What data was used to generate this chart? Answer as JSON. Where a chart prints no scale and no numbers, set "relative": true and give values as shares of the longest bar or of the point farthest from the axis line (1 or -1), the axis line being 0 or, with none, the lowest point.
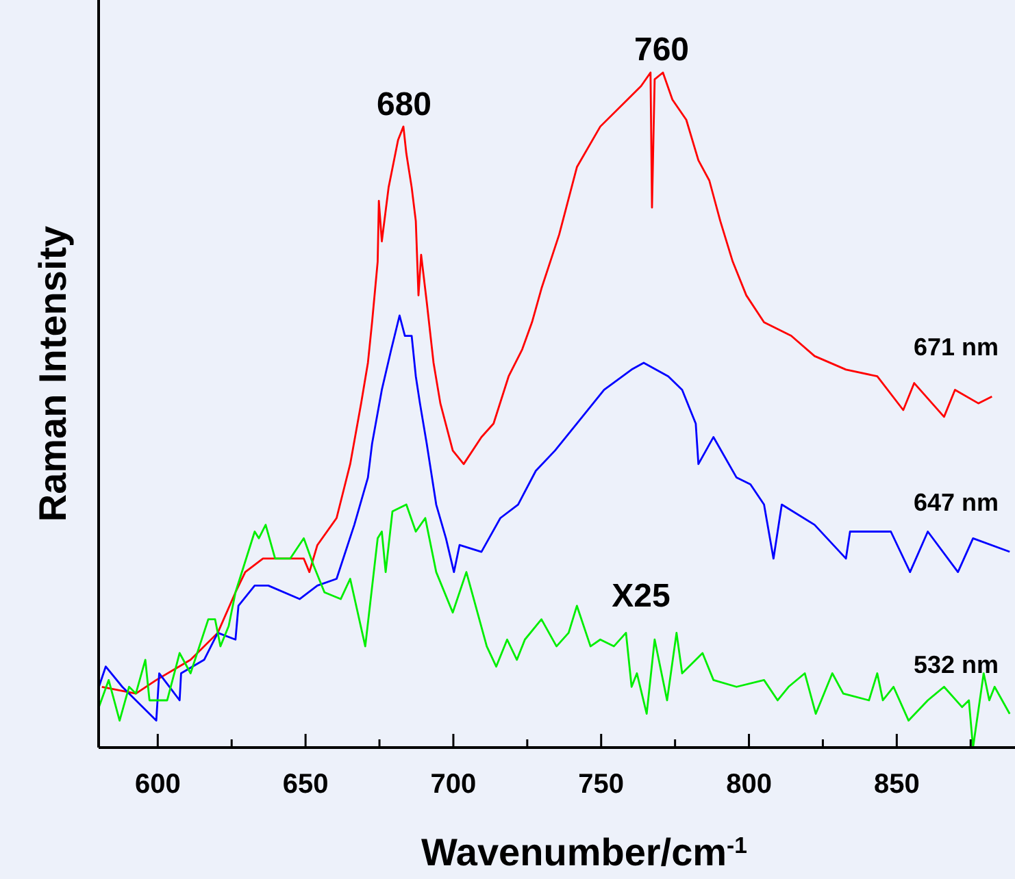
{
  "chart_data": {
    "type": "line",
    "relative": true,
    "xlabel": "Wavenumber/cm$^{-1}$",
    "ylabel": "Raman Intensity",
    "xlim": [
      580,
      890
    ],
    "xticks": [
      600,
      {
        "value": 625,
        "label": null
      },
      650,
      {
        "value": 675,
        "label": null
      },
      700,
      {
        "value": 725,
        "label": null
      },
      750,
      {
        "value": 775,
        "label": null
      },
      800,
      {
        "value": 825,
        "label": null
      },
      850,
      {
        "value": 875,
        "label": null
      }
    ],
    "annotations": [
      "680",
      "760",
      "X25"
    ],
    "series": [
      {
        "name": "671 nm",
        "color": "#ff0000",
        "x": [
          581.1,
          592.6,
          599.5,
          611.1,
          620.3,
          626.3,
          629.6,
          635.6,
          649.4,
          651.3,
          654.0,
          660.5,
          665.1,
          668.8,
          671.1,
          672.5,
          674.4,
          674.8,
          675.8,
          678.1,
          681.3,
          683.1,
          684.1,
          685.9,
          687.3,
          688.2,
          689.1,
          691.0,
          693.3,
          695.6,
          699.8,
          703.5,
          709.5,
          713.6,
          718.7,
          723.3,
          726.6,
          729.8,
          735.8,
          741.8,
          749.7,
          758.9,
          763.5,
          766.7,
          767.2,
          768.1,
          770.9,
          774.1,
          778.8,
          782.9,
          786.6,
          790.3,
          794.5,
          799.1,
          805.1,
          814.3,
          822.2,
          832.8,
          843.4,
          852.2,
          855.9,
          866.0,
          869.7,
          877.6,
          882.2
        ],
        "values": [
          0.09,
          0.08,
          0.1,
          0.13,
          0.17,
          0.23,
          0.26,
          0.28,
          0.28,
          0.26,
          0.3,
          0.34,
          0.42,
          0.51,
          0.57,
          0.63,
          0.72,
          0.81,
          0.75,
          0.83,
          0.9,
          0.92,
          0.88,
          0.83,
          0.78,
          0.67,
          0.73,
          0.66,
          0.57,
          0.51,
          0.44,
          0.42,
          0.46,
          0.48,
          0.55,
          0.59,
          0.63,
          0.68,
          0.76,
          0.86,
          0.92,
          0.96,
          0.98,
          1.0,
          0.8,
          0.99,
          1.0,
          0.96,
          0.93,
          0.87,
          0.84,
          0.78,
          0.72,
          0.67,
          0.63,
          0.61,
          0.58,
          0.56,
          0.55,
          0.5,
          0.54,
          0.49,
          0.53,
          0.51,
          0.52
        ]
      },
      {
        "name": "647 nm",
        "color": "#0000ff",
        "x": [
          580.1,
          582.4,
          588.0,
          599.5,
          600.5,
          607.4,
          607.9,
          615.7,
          620.3,
          626.3,
          627.3,
          632.8,
          637.4,
          648.0,
          654.0,
          660.5,
          666.5,
          671.1,
          672.5,
          675.8,
          679.0,
          681.8,
          683.6,
          685.9,
          687.3,
          688.7,
          691.0,
          694.2,
          697.5,
          700.2,
          702.1,
          709.5,
          715.9,
          721.9,
          727.9,
          734.4,
          741.8,
          751.0,
          760.3,
          764.4,
          772.7,
          777.4,
          782.0,
          782.9,
          788.0,
          795.8,
          800.5,
          805.1,
          808.3,
          811.1,
          822.2,
          832.8,
          834.2,
          848.0,
          854.5,
          860.5,
          870.7,
          875.8,
          888.2
        ],
        "values": [
          0.09,
          0.12,
          0.09,
          0.04,
          0.11,
          0.07,
          0.11,
          0.13,
          0.17,
          0.16,
          0.21,
          0.24,
          0.24,
          0.22,
          0.24,
          0.25,
          0.33,
          0.4,
          0.45,
          0.53,
          0.59,
          0.64,
          0.61,
          0.61,
          0.55,
          0.51,
          0.45,
          0.36,
          0.31,
          0.26,
          0.3,
          0.29,
          0.34,
          0.36,
          0.41,
          0.44,
          0.48,
          0.53,
          0.56,
          0.57,
          0.55,
          0.53,
          0.48,
          0.42,
          0.46,
          0.4,
          0.39,
          0.36,
          0.28,
          0.36,
          0.33,
          0.28,
          0.32,
          0.32,
          0.26,
          0.32,
          0.26,
          0.31,
          0.29
        ]
      },
      {
        "name": "532 nm",
        "color": "#00ee00",
        "x": [
          580.1,
          583.4,
          587.1,
          590.3,
          592.6,
          595.8,
          597.2,
          603.2,
          607.4,
          611.1,
          617.1,
          619.4,
          621.2,
          624.0,
          626.3,
          632.8,
          634.2,
          636.5,
          639.7,
          644.8,
          649.4,
          652.7,
          656.4,
          661.9,
          665.1,
          670.2,
          674.4,
          675.8,
          677.1,
          679.4,
          684.1,
          687.3,
          690.5,
          694.2,
          699.8,
          704.4,
          711.3,
          714.5,
          718.2,
          721.5,
          724.2,
          729.8,
          734.9,
          739.0,
          741.8,
          746.4,
          749.7,
          754.3,
          758.4,
          760.3,
          762.1,
          765.4,
          768.1,
          772.3,
          775.5,
          777.4,
          784.3,
          788.0,
          795.8,
          805.1,
          809.7,
          813.4,
          818.9,
          822.6,
          828.2,
          831.9,
          840.6,
          843.4,
          845.3,
          848.9,
          854.0,
          860.5,
          866.0,
          872.1,
          874.4,
          875.8,
          879.4,
          881.3,
          883.1,
          888.2
        ],
        "values": [
          0.06,
          0.1,
          0.04,
          0.09,
          0.08,
          0.13,
          0.07,
          0.07,
          0.14,
          0.11,
          0.19,
          0.19,
          0.15,
          0.18,
          0.23,
          0.32,
          0.31,
          0.33,
          0.28,
          0.28,
          0.31,
          0.27,
          0.23,
          0.22,
          0.25,
          0.15,
          0.31,
          0.32,
          0.26,
          0.35,
          0.36,
          0.32,
          0.34,
          0.26,
          0.2,
          0.26,
          0.15,
          0.12,
          0.16,
          0.13,
          0.16,
          0.19,
          0.15,
          0.17,
          0.21,
          0.15,
          0.16,
          0.15,
          0.17,
          0.09,
          0.11,
          0.05,
          0.16,
          0.07,
          0.17,
          0.11,
          0.14,
          0.1,
          0.09,
          0.1,
          0.07,
          0.09,
          0.11,
          0.05,
          0.11,
          0.08,
          0.07,
          0.11,
          0.07,
          0.09,
          0.04,
          0.07,
          0.09,
          0.06,
          0.07,
          0.0,
          0.11,
          0.07,
          0.09,
          0.05
        ]
      }
    ]
  }
}
